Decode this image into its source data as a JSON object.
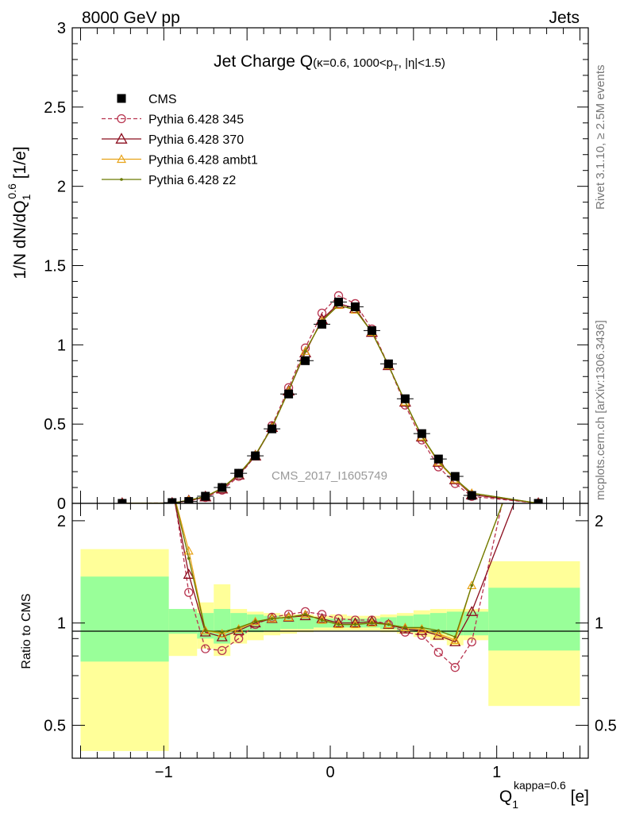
{
  "header": {
    "left": "8000 GeV pp",
    "right": "Jets"
  },
  "side_labels": {
    "rivet": "Rivet 3.1.10, ≥ 2.5M events",
    "mcplots": "mcplots.cern.ch [arXiv:1306.3436]"
  },
  "watermark": "CMS_2017_I1605749",
  "colors": {
    "cms": "#000000",
    "p345": "#b8344f",
    "p370": "#8b0d1e",
    "ambt1": "#e8a317",
    "z2": "#6b7a00",
    "band_outer": "#ffff99",
    "band_inner": "#99ff99"
  },
  "chart_data": [
    {
      "type": "scatter",
      "title_main": "Jet Charge Q",
      "title_sub": "(κ=0.6, 1000<p",
      "title_sub_sub": "T",
      "title_sub_tail": ", |η|<1.5)",
      "ylabel_main": "1/N dN/dQ",
      "ylabel_sub": "1",
      "ylabel_sup": "0.6",
      "ylabel_tail": " [1/e]",
      "xlim": [
        -1.55,
        1.55
      ],
      "ylim": [
        0,
        3
      ],
      "yticks": [
        "0",
        "0.5",
        "1",
        "1.5",
        "2",
        "2.5",
        "3"
      ],
      "ytick_values": [
        0,
        0.5,
        1,
        1.5,
        2,
        2.5,
        3
      ],
      "legend_position": "top-left",
      "x": [
        -1.25,
        -0.95,
        -0.85,
        -0.75,
        -0.65,
        -0.55,
        -0.45,
        -0.35,
        -0.25,
        -0.15,
        -0.05,
        0.05,
        0.15,
        0.25,
        0.35,
        0.45,
        0.55,
        0.65,
        0.75,
        0.85,
        1.25
      ],
      "series": [
        {
          "name": "CMS",
          "key": "cms",
          "style": "square",
          "values": [
            0.0001,
            0.005,
            0.012,
            0.045,
            0.1,
            0.19,
            0.3,
            0.47,
            0.69,
            0.9,
            1.13,
            1.27,
            1.24,
            1.09,
            0.88,
            0.66,
            0.44,
            0.28,
            0.17,
            0.05,
            0.0001
          ]
        },
        {
          "name": "Pythia 6.428 345",
          "key": "p345",
          "style": "circle-dashed",
          "values": [
            0.001,
            0.003,
            0.015,
            0.037,
            0.083,
            0.17,
            0.3,
            0.49,
            0.73,
            0.98,
            1.2,
            1.31,
            1.26,
            1.1,
            0.87,
            0.62,
            0.4,
            0.23,
            0.125,
            0.044,
            0.001
          ]
        },
        {
          "name": "Pythia 6.428 370",
          "key": "p370",
          "style": "triangle",
          "values": [
            0.0005,
            0.002,
            0.017,
            0.042,
            0.092,
            0.18,
            0.3,
            0.48,
            0.71,
            0.95,
            1.16,
            1.26,
            1.23,
            1.08,
            0.87,
            0.64,
            0.42,
            0.26,
            0.15,
            0.055,
            0.0005
          ]
        },
        {
          "name": "Pythia 6.428 ambt1",
          "key": "ambt1",
          "style": "triangle-small",
          "values": [
            0.0005,
            0.002,
            0.02,
            0.043,
            0.095,
            0.185,
            0.305,
            0.48,
            0.71,
            0.96,
            1.15,
            1.25,
            1.22,
            1.08,
            0.87,
            0.64,
            0.42,
            0.26,
            0.15,
            0.064,
            0.0005
          ]
        },
        {
          "name": "Pythia 6.428 z2",
          "key": "z2",
          "style": "dot",
          "values": [
            0.0005,
            0.002,
            0.02,
            0.043,
            0.096,
            0.185,
            0.305,
            0.48,
            0.71,
            0.96,
            1.15,
            1.25,
            1.22,
            1.08,
            0.87,
            0.64,
            0.425,
            0.265,
            0.155,
            0.065,
            0.0005
          ]
        }
      ]
    },
    {
      "type": "line",
      "ylabel": "Ratio to CMS",
      "xlabel_main": "Q",
      "xlabel_sub": "1",
      "xlabel_sup": "kappa=0.6",
      "xlabel_tail": " [e]",
      "xlim": [
        -1.55,
        1.55
      ],
      "ylim": [
        0.4,
        2.25
      ],
      "xticks": [
        "−1",
        "0",
        "1"
      ],
      "xtick_values": [
        -1,
        0,
        1
      ],
      "yticks": [
        "0.5",
        "1",
        "2"
      ],
      "ytick_values": [
        0.5,
        1,
        2
      ],
      "bins": [
        {
          "lo": -1.5,
          "hi": -0.97,
          "inner": [
            0.77,
            1.37
          ],
          "outer": [
            0.42,
            1.65
          ]
        },
        {
          "lo": -0.97,
          "hi": -0.8,
          "inner": [
            0.93,
            1.1
          ],
          "outer": [
            0.8,
            1.1
          ]
        },
        {
          "lo": -0.8,
          "hi": -0.7,
          "inner": [
            0.9,
            1.07
          ],
          "outer": [
            0.84,
            1.15
          ]
        },
        {
          "lo": -0.7,
          "hi": -0.6,
          "inner": [
            0.87,
            1.1
          ],
          "outer": [
            0.8,
            1.3
          ]
        },
        {
          "lo": -0.6,
          "hi": -0.5,
          "inner": [
            0.93,
            1.07
          ],
          "outer": [
            0.87,
            1.1
          ]
        },
        {
          "lo": -0.5,
          "hi": -0.4,
          "inner": [
            0.94,
            1.06
          ],
          "outer": [
            0.89,
            1.08
          ]
        },
        {
          "lo": -0.4,
          "hi": -0.3,
          "inner": [
            0.95,
            1.05
          ],
          "outer": [
            0.92,
            1.07
          ]
        },
        {
          "lo": -0.3,
          "hi": -0.2,
          "inner": [
            0.96,
            1.04
          ],
          "outer": [
            0.93,
            1.06
          ]
        },
        {
          "lo": -0.2,
          "hi": -0.1,
          "inner": [
            0.96,
            1.04
          ],
          "outer": [
            0.94,
            1.06
          ]
        },
        {
          "lo": -0.1,
          "hi": 0.0,
          "inner": [
            0.97,
            1.03
          ],
          "outer": [
            0.95,
            1.05
          ]
        },
        {
          "lo": 0.0,
          "hi": 0.1,
          "inner": [
            0.97,
            1.03
          ],
          "outer": [
            0.95,
            1.06
          ]
        },
        {
          "lo": 0.1,
          "hi": 0.2,
          "inner": [
            0.97,
            1.03
          ],
          "outer": [
            0.95,
            1.05
          ]
        },
        {
          "lo": 0.2,
          "hi": 0.3,
          "inner": [
            0.97,
            1.03
          ],
          "outer": [
            0.95,
            1.05
          ]
        },
        {
          "lo": 0.3,
          "hi": 0.4,
          "inner": [
            0.96,
            1.04
          ],
          "outer": [
            0.94,
            1.06
          ]
        },
        {
          "lo": 0.4,
          "hi": 0.5,
          "inner": [
            0.95,
            1.05
          ],
          "outer": [
            0.93,
            1.07
          ]
        },
        {
          "lo": 0.5,
          "hi": 0.6,
          "inner": [
            0.94,
            1.06
          ],
          "outer": [
            0.91,
            1.09
          ]
        },
        {
          "lo": 0.6,
          "hi": 0.7,
          "inner": [
            0.93,
            1.07
          ],
          "outer": [
            0.89,
            1.1
          ]
        },
        {
          "lo": 0.7,
          "hi": 0.8,
          "inner": [
            0.92,
            1.08
          ],
          "outer": [
            0.86,
            1.1
          ]
        },
        {
          "lo": 0.8,
          "hi": 0.95,
          "inner": [
            0.92,
            1.08
          ],
          "outer": [
            0.89,
            1.1
          ]
        },
        {
          "lo": 0.95,
          "hi": 1.5,
          "inner": [
            0.83,
            1.27
          ],
          "outer": [
            0.57,
            1.52
          ]
        }
      ],
      "x": [
        -0.95,
        -0.85,
        -0.75,
        -0.65,
        -0.55,
        -0.45,
        -0.35,
        -0.25,
        -0.15,
        -0.05,
        0.05,
        0.15,
        0.25,
        0.35,
        0.45,
        0.55,
        0.65,
        0.75,
        0.85
      ],
      "series": [
        {
          "name": "Pythia 6.428 345",
          "key": "p345",
          "style": "circle-dashed",
          "values": [
            2.6,
            1.23,
            0.84,
            0.83,
            0.9,
            0.99,
            1.04,
            1.06,
            1.08,
            1.06,
            1.03,
            1.02,
            1.02,
            0.99,
            0.94,
            0.92,
            0.82,
            0.74,
            0.88
          ],
          "edge": [
            [
              -1.06,
              2.6
            ],
            [
              1.06,
              2.6
            ]
          ]
        },
        {
          "name": "Pythia 6.428 370",
          "key": "p370",
          "style": "triangle",
          "values": [
            2.5,
            1.39,
            0.94,
            0.91,
            0.95,
            1.0,
            1.03,
            1.04,
            1.05,
            1.03,
            1.0,
            1.0,
            1.01,
            0.99,
            0.96,
            0.95,
            0.92,
            0.88,
            1.08
          ],
          "edge": [
            [
              -0.99,
              2.5
            ],
            [
              1.14,
              2.5
            ]
          ]
        },
        {
          "name": "Pythia 6.428 ambt1",
          "key": "ambt1",
          "style": "triangle-small",
          "values": [
            2.5,
            1.63,
            0.95,
            0.93,
            0.96,
            1.01,
            1.03,
            1.04,
            1.06,
            1.02,
            0.99,
            0.99,
            1.0,
            0.99,
            0.97,
            0.96,
            0.93,
            0.89,
            1.29
          ],
          "edge": [
            [
              -0.99,
              2.5
            ],
            [
              1.07,
              2.5
            ]
          ]
        },
        {
          "name": "Pythia 6.428 z2",
          "key": "z2",
          "style": "dot",
          "values": [
            2.5,
            1.55,
            0.95,
            0.94,
            0.97,
            1.01,
            1.03,
            1.04,
            1.06,
            1.02,
            0.99,
            0.99,
            1.0,
            0.99,
            0.97,
            0.97,
            0.95,
            0.91,
            1.29
          ],
          "edge": [
            [
              -0.97,
              2.5
            ],
            [
              1.07,
              2.5
            ]
          ]
        }
      ]
    }
  ]
}
